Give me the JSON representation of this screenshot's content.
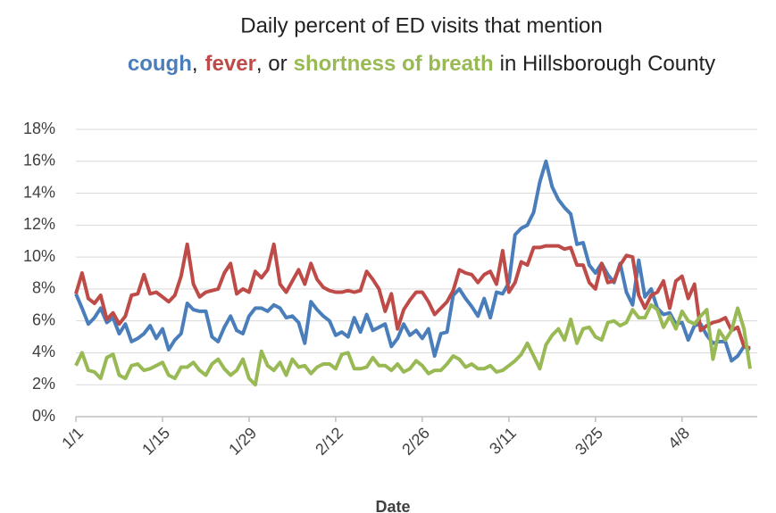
{
  "chart_data": {
    "type": "line",
    "title": "Daily percent of ED visits that mention",
    "title_connectors": [
      ",",
      ", or",
      "in Hillsborough County"
    ],
    "x_label": "Date",
    "categories": [
      "1/1",
      null,
      null,
      null,
      null,
      null,
      null,
      null,
      null,
      null,
      null,
      null,
      null,
      null,
      "1/15",
      null,
      null,
      null,
      null,
      null,
      null,
      null,
      null,
      null,
      null,
      null,
      null,
      null,
      "1/29",
      null,
      null,
      null,
      null,
      null,
      null,
      null,
      null,
      null,
      null,
      null,
      null,
      null,
      "2/12",
      null,
      null,
      null,
      null,
      null,
      null,
      null,
      null,
      null,
      null,
      null,
      null,
      null,
      "2/26",
      null,
      null,
      null,
      null,
      null,
      null,
      null,
      null,
      null,
      null,
      null,
      null,
      null,
      "3/11",
      null,
      null,
      null,
      null,
      null,
      null,
      null,
      null,
      null,
      null,
      null,
      null,
      null,
      "3/25",
      null,
      null,
      null,
      null,
      null,
      null,
      null,
      null,
      null,
      null,
      null,
      null,
      null,
      "4/8",
      null,
      null,
      null,
      null,
      null,
      null,
      null,
      null,
      null,
      null,
      null
    ],
    "series": [
      {
        "name": "cough",
        "color": "#4a7ebb",
        "values": [
          7.7,
          6.8,
          5.8,
          6.2,
          6.8,
          5.9,
          6.2,
          5.2,
          5.8,
          4.7,
          4.9,
          5.2,
          5.7,
          4.9,
          5.5,
          4.2,
          4.8,
          5.2,
          7.1,
          6.7,
          6.6,
          6.6,
          5.0,
          4.7,
          5.6,
          6.3,
          5.4,
          5.2,
          6.3,
          6.8,
          6.8,
          6.6,
          7.0,
          6.8,
          6.2,
          6.3,
          5.9,
          4.6,
          7.2,
          6.7,
          6.3,
          6.0,
          5.1,
          5.3,
          5.0,
          6.2,
          5.3,
          6.4,
          5.4,
          5.6,
          5.8,
          4.4,
          4.9,
          5.8,
          5.1,
          5.4,
          4.9,
          5.5,
          3.8,
          5.2,
          5.3,
          7.6,
          8.0,
          7.4,
          6.9,
          6.3,
          7.4,
          6.2,
          7.8,
          7.7,
          8.4,
          11.4,
          11.8,
          12.0,
          12.8,
          14.7,
          16.0,
          14.4,
          13.6,
          13.1,
          12.7,
          10.8,
          10.9,
          9.5,
          9.0,
          9.6,
          8.9,
          8.4,
          9.6,
          7.8,
          7.0,
          9.8,
          7.5,
          8.0,
          6.8,
          6.4,
          6.5,
          5.8,
          5.9,
          4.8,
          5.7,
          5.8,
          5.1,
          4.6,
          4.7,
          4.7,
          3.5,
          3.8,
          4.4,
          4.2
        ]
      },
      {
        "name": "fever",
        "color": "#be4b48",
        "values": [
          7.7,
          9.0,
          7.4,
          7.1,
          7.6,
          6.1,
          6.5,
          5.8,
          6.3,
          7.6,
          7.7,
          8.9,
          7.7,
          7.8,
          7.5,
          7.2,
          7.6,
          8.8,
          10.8,
          8.3,
          7.5,
          7.8,
          7.9,
          8.0,
          9.0,
          9.6,
          7.7,
          8.0,
          7.8,
          9.1,
          8.7,
          9.2,
          10.8,
          8.3,
          7.8,
          8.5,
          9.2,
          8.3,
          9.6,
          8.6,
          8.1,
          7.9,
          7.8,
          7.8,
          7.9,
          7.8,
          7.9,
          9.1,
          8.6,
          8.0,
          6.6,
          7.7,
          5.5,
          6.7,
          7.3,
          7.8,
          7.8,
          7.2,
          6.4,
          6.8,
          7.2,
          7.9,
          9.2,
          9.0,
          8.9,
          8.4,
          8.9,
          9.1,
          8.3,
          10.4,
          7.8,
          8.4,
          9.7,
          9.5,
          10.6,
          10.6,
          10.7,
          10.7,
          10.7,
          10.5,
          10.6,
          9.5,
          9.5,
          8.4,
          8.0,
          9.6,
          8.4,
          8.5,
          9.5,
          10.1,
          10.0,
          7.6,
          6.8,
          7.6,
          7.8,
          8.5,
          6.8,
          8.5,
          8.8,
          7.4,
          8.3,
          5.4,
          5.7,
          5.9,
          6.0,
          6.2,
          5.4,
          5.6,
          4.4,
          4.3
        ]
      },
      {
        "name": "shortness of breath",
        "color": "#98b954",
        "values": [
          3.2,
          4.0,
          2.9,
          2.8,
          2.4,
          3.7,
          3.9,
          2.6,
          2.4,
          3.2,
          3.3,
          2.9,
          3.0,
          3.2,
          3.4,
          2.6,
          2.4,
          3.1,
          3.1,
          3.4,
          2.9,
          2.6,
          3.3,
          3.6,
          3.0,
          2.6,
          2.9,
          3.6,
          2.4,
          2.0,
          4.1,
          3.2,
          2.9,
          3.4,
          2.6,
          3.6,
          3.1,
          3.2,
          2.7,
          3.1,
          3.3,
          3.3,
          3.0,
          3.9,
          4.0,
          3.0,
          3.0,
          3.1,
          3.7,
          3.2,
          3.2,
          2.9,
          3.3,
          2.8,
          3.0,
          3.5,
          3.2,
          2.7,
          2.9,
          2.9,
          3.3,
          3.8,
          3.6,
          3.1,
          3.3,
          3.0,
          3.0,
          3.2,
          2.8,
          2.9,
          3.2,
          3.5,
          3.9,
          4.6,
          3.8,
          3.0,
          4.5,
          5.1,
          5.5,
          4.8,
          6.1,
          4.6,
          5.5,
          5.6,
          5.0,
          4.8,
          5.9,
          6.0,
          5.7,
          5.9,
          6.7,
          6.2,
          6.2,
          7.0,
          6.7,
          5.6,
          6.3,
          5.5,
          6.6,
          6.0,
          5.8,
          6.3,
          6.7,
          3.6,
          5.4,
          4.8,
          5.4,
          6.8,
          5.5,
          3.0
        ]
      }
    ],
    "ylim": [
      0,
      18
    ],
    "yticks": [
      {
        "value": 0,
        "label": "0%"
      },
      {
        "value": 2,
        "label": "2%"
      },
      {
        "value": 4,
        "label": "4%"
      },
      {
        "value": 6,
        "label": "6%"
      },
      {
        "value": 8,
        "label": "8%"
      },
      {
        "value": 10,
        "label": "10%"
      },
      {
        "value": 12,
        "label": "12%"
      },
      {
        "value": 14,
        "label": "14%"
      },
      {
        "value": 16,
        "label": "16%"
      },
      {
        "value": 18,
        "label": "18%"
      }
    ],
    "grid": true
  }
}
